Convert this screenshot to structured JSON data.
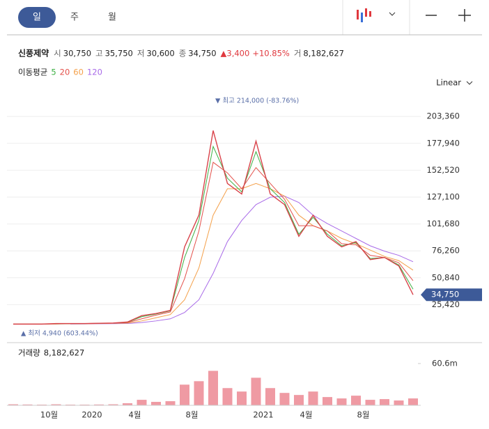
{
  "tabs": [
    "일",
    "주",
    "월"
  ],
  "header": {
    "name": "신풍제약",
    "items": [
      {
        "label": "시",
        "value": "30,750"
      },
      {
        "label": "고",
        "value": "35,750"
      },
      {
        "label": "저",
        "value": "30,600"
      },
      {
        "label": "종",
        "value": "34,750"
      }
    ],
    "change": "▲3,400",
    "change_pct": "+10.85%",
    "volume_label": "거",
    "volume": "8,182,627"
  },
  "ma_title": "이동평균",
  "scale_mode": "Linear",
  "chart_data": {
    "type": "line",
    "categories": [
      null,
      null,
      null,
      "10월",
      null,
      null,
      "2020",
      null,
      null,
      "4월",
      null,
      null,
      null,
      "8월",
      null,
      null,
      null,
      null,
      "2021",
      null,
      null,
      "4월",
      null,
      null,
      null,
      "8월",
      null,
      null,
      null
    ],
    "values": [
      7000,
      7000,
      7000,
      7500,
      7500,
      7500,
      7800,
      8000,
      9000,
      15000,
      17000,
      20000,
      80000,
      110000,
      190000,
      140000,
      130000,
      180000,
      130000,
      120000,
      90000,
      110000,
      90000,
      80000,
      85000,
      68000,
      70000,
      62000,
      34750
    ],
    "color": "#d9434a",
    "series": [
      {
        "name": "5",
        "color": "#3cb043",
        "values": [
          7000,
          7000,
          7000,
          7400,
          7500,
          7500,
          7700,
          8000,
          8800,
          14000,
          16500,
          19500,
          70000,
          105000,
          175000,
          145000,
          132000,
          170000,
          135000,
          122000,
          92000,
          108000,
          92000,
          81000,
          84000,
          69000,
          70000,
          63000,
          40000
        ]
      },
      {
        "name": "20",
        "color": "#e4504a",
        "values": [
          7000,
          7000,
          7000,
          7200,
          7400,
          7500,
          7600,
          7900,
          8500,
          12000,
          15500,
          18500,
          50000,
          95000,
          160000,
          150000,
          135000,
          155000,
          140000,
          125000,
          100000,
          100000,
          95000,
          83000,
          82000,
          72000,
          70000,
          65000,
          48000
        ]
      },
      {
        "name": "60",
        "color": "#f4a04a",
        "values": [
          7000,
          7000,
          7000,
          7100,
          7300,
          7400,
          7500,
          7700,
          8000,
          10000,
          13000,
          16000,
          30000,
          60000,
          110000,
          135000,
          135000,
          140000,
          135000,
          128000,
          110000,
          100000,
          95000,
          88000,
          83000,
          77000,
          71000,
          67000,
          58000
        ]
      },
      {
        "name": "120",
        "color": "#a86ae8",
        "values": [
          null,
          null,
          null,
          null,
          7100,
          7200,
          7300,
          7400,
          7600,
          8500,
          10000,
          12000,
          18000,
          30000,
          55000,
          85000,
          105000,
          120000,
          127000,
          128000,
          122000,
          110000,
          102000,
          95000,
          88000,
          81000,
          76000,
          72000,
          66000
        ]
      }
    ],
    "ylim": [
      0,
      216000
    ],
    "yticks": [
      {
        "value": 25420,
        "label": "25,420"
      },
      {
        "value": 50840,
        "label": "50,840"
      },
      {
        "value": 76260,
        "label": "76,260"
      },
      {
        "value": 101680,
        "label": "101,680"
      },
      {
        "value": 127100,
        "label": "127,100"
      },
      {
        "value": 152520,
        "label": "152,520"
      },
      {
        "value": 177940,
        "label": "177,940"
      },
      {
        "value": 203360,
        "label": "203,360"
      }
    ],
    "grid": true,
    "price_tag": {
      "value": 34750,
      "label": "34,750"
    },
    "annotations": [
      "▼ 최고 214,000 (-83.76%)",
      "▲ 최저 4,940 (603.44%)"
    ],
    "volume_title": "거래량",
    "volume_total": "8,182,627",
    "volume": [
      1500000,
      1200000,
      1000000,
      1500000,
      1000000,
      1000000,
      1200000,
      1500000,
      3000000,
      8000000,
      5000000,
      6000000,
      30000000,
      35000000,
      50000000,
      25000000,
      20000000,
      40000000,
      25000000,
      18000000,
      15000000,
      20000000,
      12000000,
      10000000,
      14000000,
      8000000,
      9000000,
      7000000,
      10000000
    ],
    "volume_color": "#ef9aa3",
    "volume_ylim": [
      0,
      60600000
    ],
    "volume_ticks": [
      {
        "value": 60600000,
        "label": "60.6m"
      }
    ]
  }
}
